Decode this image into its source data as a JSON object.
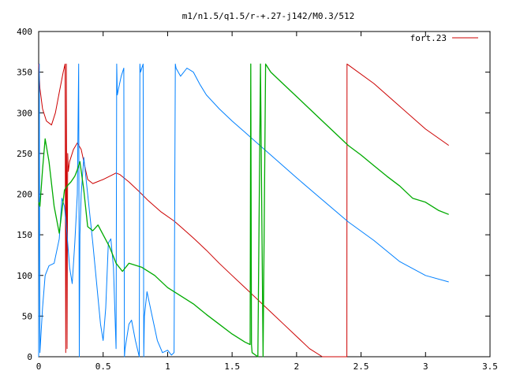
{
  "chart_data": {
    "type": "line",
    "title": "m1/n1.5/q1.5/r-+.27-j142/M0.3/512",
    "xlabel": "",
    "ylabel": "",
    "xlim": [
      0,
      3.5
    ],
    "ylim": [
      0,
      400
    ],
    "x_ticks": [
      "0",
      "0.5",
      "1",
      "1.5",
      "2",
      "2.5",
      "3",
      "3.5"
    ],
    "y_ticks": [
      "0",
      "50",
      "100",
      "150",
      "200",
      "250",
      "300",
      "350",
      "400"
    ],
    "grid": false,
    "legend": {
      "position": "top-right",
      "entries": [
        "fort.23"
      ]
    },
    "series": [
      {
        "name": "fort.23",
        "color": "#cc0000",
        "x": [
          0.0,
          0.01,
          0.03,
          0.06,
          0.1,
          0.13,
          0.16,
          0.19,
          0.205,
          0.21,
          0.215,
          0.22,
          0.225,
          0.23,
          0.24,
          0.27,
          0.3,
          0.33,
          0.35,
          0.38,
          0.42,
          0.5,
          0.55,
          0.6,
          0.63,
          0.7,
          0.78,
          0.85,
          0.95,
          1.05,
          1.1,
          1.2,
          1.3,
          1.4,
          1.5,
          1.6,
          1.7,
          1.8,
          1.9,
          2.0,
          2.1,
          2.2,
          2.3,
          2.39,
          2.391,
          2.6,
          2.8,
          3.0,
          3.18
        ],
        "values": [
          360,
          330,
          305,
          290,
          285,
          300,
          325,
          350,
          360,
          5,
          360,
          10,
          250,
          228,
          240,
          255,
          263,
          255,
          240,
          218,
          213,
          218,
          222,
          226,
          224,
          215,
          203,
          192,
          178,
          167,
          160,
          146,
          131,
          115,
          100,
          85,
          70,
          55,
          40,
          25,
          10,
          0,
          0,
          0,
          360,
          336,
          308,
          280,
          260
        ]
      },
      {
        "name": "",
        "color": "#0080ff",
        "x": [
          0.0,
          0.005,
          0.01,
          0.03,
          0.05,
          0.08,
          0.12,
          0.16,
          0.18,
          0.2,
          0.22,
          0.24,
          0.26,
          0.28,
          0.3,
          0.31,
          0.315,
          0.32,
          0.33,
          0.35,
          0.38,
          0.42,
          0.45,
          0.48,
          0.5,
          0.52,
          0.54,
          0.56,
          0.58,
          0.6,
          0.605,
          0.61,
          0.62,
          0.64,
          0.66,
          0.665,
          0.67,
          0.7,
          0.72,
          0.75,
          0.78,
          0.785,
          0.79,
          0.8,
          0.81,
          0.815,
          0.82,
          0.84,
          0.88,
          0.92,
          0.96,
          1.0,
          1.03,
          1.05,
          1.06,
          1.065,
          1.1,
          1.15,
          1.2,
          1.25,
          1.3,
          1.4,
          1.5,
          1.6,
          1.7,
          1.8,
          2.0,
          2.2,
          2.4,
          2.6,
          2.8,
          3.0,
          3.18
        ],
        "values": [
          0,
          360,
          5,
          60,
          100,
          112,
          115,
          145,
          195,
          185,
          150,
          110,
          90,
          140,
          200,
          360,
          0,
          150,
          200,
          245,
          200,
          140,
          90,
          40,
          20,
          60,
          140,
          145,
          110,
          10,
          360,
          322,
          330,
          345,
          355,
          0,
          10,
          40,
          45,
          20,
          0,
          360,
          350,
          355,
          360,
          0,
          50,
          80,
          50,
          20,
          5,
          8,
          2,
          5,
          360,
          355,
          345,
          355,
          350,
          335,
          322,
          305,
          290,
          276,
          262,
          248,
          220,
          193,
          166,
          143,
          117,
          100,
          92
        ]
      },
      {
        "name": "",
        "color": "#00aa00",
        "x": [
          0.0,
          0.01,
          0.03,
          0.05,
          0.08,
          0.12,
          0.16,
          0.2,
          0.22,
          0.25,
          0.28,
          0.3,
          0.32,
          0.35,
          0.38,
          0.42,
          0.46,
          0.5,
          0.55,
          0.6,
          0.65,
          0.7,
          0.8,
          0.9,
          1.0,
          1.1,
          1.2,
          1.3,
          1.4,
          1.5,
          1.6,
          1.64,
          1.645,
          1.65,
          1.655,
          1.7,
          1.72,
          1.74,
          1.76,
          1.78,
          1.8,
          1.9,
          2.0,
          2.1,
          2.2,
          2.3,
          2.4,
          2.5,
          2.6,
          2.7,
          2.8,
          2.9,
          3.0,
          3.1,
          3.18
        ],
        "values": [
          190,
          185,
          230,
          268,
          240,
          185,
          152,
          205,
          210,
          215,
          222,
          230,
          240,
          205,
          160,
          155,
          162,
          150,
          135,
          115,
          105,
          115,
          110,
          100,
          85,
          75,
          65,
          52,
          40,
          28,
          18,
          15,
          360,
          15,
          5,
          0,
          360,
          0,
          360,
          355,
          350,
          335,
          320,
          305,
          290,
          275,
          260,
          248,
          235,
          222,
          210,
          195,
          190,
          180,
          175
        ]
      }
    ]
  }
}
